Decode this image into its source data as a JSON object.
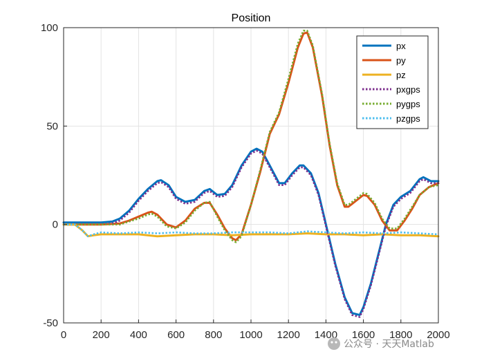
{
  "chart_data": {
    "type": "line",
    "title": "Position",
    "xlabel": "",
    "ylabel": "",
    "xlim": [
      0,
      2000
    ],
    "ylim": [
      -50,
      100
    ],
    "xticks": [
      0,
      200,
      400,
      600,
      800,
      1000,
      1200,
      1400,
      1600,
      1800,
      2000
    ],
    "yticks": [
      -50,
      0,
      50,
      100
    ],
    "grid": true,
    "legend_position": "top-right",
    "series": [
      {
        "name": "px",
        "color": "#0072BD",
        "style": "solid",
        "x": [
          0,
          100,
          200,
          260,
          300,
          350,
          400,
          450,
          500,
          520,
          560,
          600,
          650,
          700,
          750,
          780,
          820,
          860,
          900,
          950,
          1000,
          1030,
          1060,
          1100,
          1150,
          1180,
          1220,
          1260,
          1280,
          1320,
          1360,
          1400,
          1450,
          1500,
          1540,
          1580,
          1600,
          1640,
          1680,
          1720,
          1760,
          1800,
          1850,
          1900,
          1920,
          1960,
          2000
        ],
        "y": [
          1,
          1,
          1,
          1.5,
          3,
          7,
          13,
          18,
          22,
          22.5,
          20,
          14,
          11.5,
          12.5,
          17,
          18,
          15,
          15.5,
          20,
          30,
          37,
          38.5,
          37,
          30,
          21,
          21,
          26,
          30,
          30,
          26,
          16,
          0,
          -20,
          -37,
          -45,
          -46,
          -42,
          -30,
          -15,
          0,
          10,
          14,
          17,
          23,
          24,
          22,
          22
        ]
      },
      {
        "name": "py",
        "color": "#D95319",
        "style": "solid",
        "x": [
          0,
          100,
          200,
          300,
          350,
          400,
          450,
          470,
          500,
          550,
          600,
          650,
          700,
          750,
          780,
          820,
          860,
          900,
          920,
          950,
          1000,
          1050,
          1100,
          1150,
          1200,
          1250,
          1280,
          1300,
          1330,
          1380,
          1420,
          1460,
          1500,
          1520,
          1560,
          1600,
          1620,
          1660,
          1700,
          1740,
          1780,
          1820,
          1860,
          1900,
          1950,
          2000
        ],
        "y": [
          0,
          0,
          0,
          0.5,
          2,
          4,
          6,
          6.5,
          5,
          0,
          -1.5,
          2,
          8,
          11,
          11,
          5,
          -2,
          -7,
          -8,
          -5,
          10,
          27,
          46,
          56,
          72,
          90,
          97,
          97.5,
          90,
          65,
          40,
          20,
          9,
          9,
          12,
          15,
          14.5,
          10,
          2,
          -3,
          -3,
          2,
          8,
          15,
          19,
          21
        ]
      },
      {
        "name": "pz",
        "color": "#EDB120",
        "style": "solid",
        "x": [
          0,
          60,
          100,
          130,
          160,
          200,
          300,
          400,
          500,
          600,
          700,
          800,
          900,
          1000,
          1100,
          1200,
          1300,
          1400,
          1500,
          1600,
          1700,
          1800,
          1900,
          2000
        ],
        "y": [
          0,
          0,
          -3,
          -6,
          -5.5,
          -5,
          -5,
          -5,
          -6,
          -5.5,
          -5,
          -5,
          -5.5,
          -5,
          -5,
          -5,
          -4.5,
          -5,
          -5,
          -5.5,
          -5,
          -5.5,
          -5.5,
          -6
        ]
      },
      {
        "name": "pxgps",
        "color": "#7E2F8E",
        "style": "dotted",
        "x": [
          0,
          100,
          200,
          260,
          300,
          350,
          400,
          450,
          500,
          520,
          560,
          600,
          650,
          700,
          750,
          780,
          820,
          860,
          900,
          950,
          1000,
          1030,
          1060,
          1100,
          1150,
          1180,
          1220,
          1260,
          1280,
          1320,
          1360,
          1400,
          1450,
          1500,
          1540,
          1580,
          1600,
          1640,
          1680,
          1720,
          1760,
          1800,
          1850,
          1900,
          1920,
          1960,
          2000
        ],
        "y": [
          0,
          0,
          0,
          0.5,
          2,
          6,
          12,
          17,
          21,
          21.5,
          19,
          13,
          10.5,
          11.5,
          16,
          17,
          14,
          14.5,
          19,
          29,
          36,
          37.5,
          36,
          29,
          20,
          20,
          25,
          29,
          29,
          25,
          15,
          -1,
          -21,
          -38,
          -46,
          -47,
          -43,
          -31,
          -16,
          -1,
          9,
          13,
          16,
          22,
          23,
          21,
          21
        ]
      },
      {
        "name": "pygps",
        "color": "#77AC30",
        "style": "dotted",
        "x": [
          0,
          100,
          200,
          300,
          350,
          400,
          450,
          470,
          500,
          550,
          600,
          650,
          700,
          750,
          780,
          820,
          860,
          900,
          920,
          950,
          1000,
          1050,
          1100,
          1150,
          1200,
          1250,
          1280,
          1300,
          1330,
          1380,
          1420,
          1460,
          1500,
          1520,
          1560,
          1600,
          1620,
          1660,
          1700,
          1740,
          1780,
          1820,
          1860,
          1900,
          1950,
          2000
        ],
        "y": [
          0,
          0,
          0,
          0,
          1.5,
          3,
          5,
          5.5,
          4,
          -1,
          -2,
          1,
          7,
          11,
          11.5,
          4,
          -3,
          -8,
          -9,
          -6,
          10,
          28,
          47,
          57,
          74,
          92,
          98.5,
          98.5,
          91,
          66,
          41,
          21,
          10,
          10,
          13,
          16,
          15.5,
          11,
          3,
          -2,
          -2,
          3,
          9,
          15,
          19,
          20
        ]
      },
      {
        "name": "pzgps",
        "color": "#4DBEEE",
        "style": "dotted",
        "x": [
          0,
          60,
          100,
          130,
          160,
          200,
          300,
          400,
          500,
          600,
          700,
          800,
          900,
          1000,
          1100,
          1200,
          1300,
          1400,
          1500,
          1600,
          1700,
          1800,
          1900,
          2000
        ],
        "y": [
          0,
          0,
          -3,
          -6,
          -5,
          -4,
          -4.5,
          -4,
          -4.5,
          -4,
          -4.5,
          -4.5,
          -4,
          -4,
          -4,
          -4.5,
          -3.5,
          -4,
          -4.5,
          -4,
          -4.5,
          -4,
          -4.5,
          -5
        ]
      }
    ]
  },
  "watermark": {
    "text": "公众号 · 天天Matlab"
  }
}
